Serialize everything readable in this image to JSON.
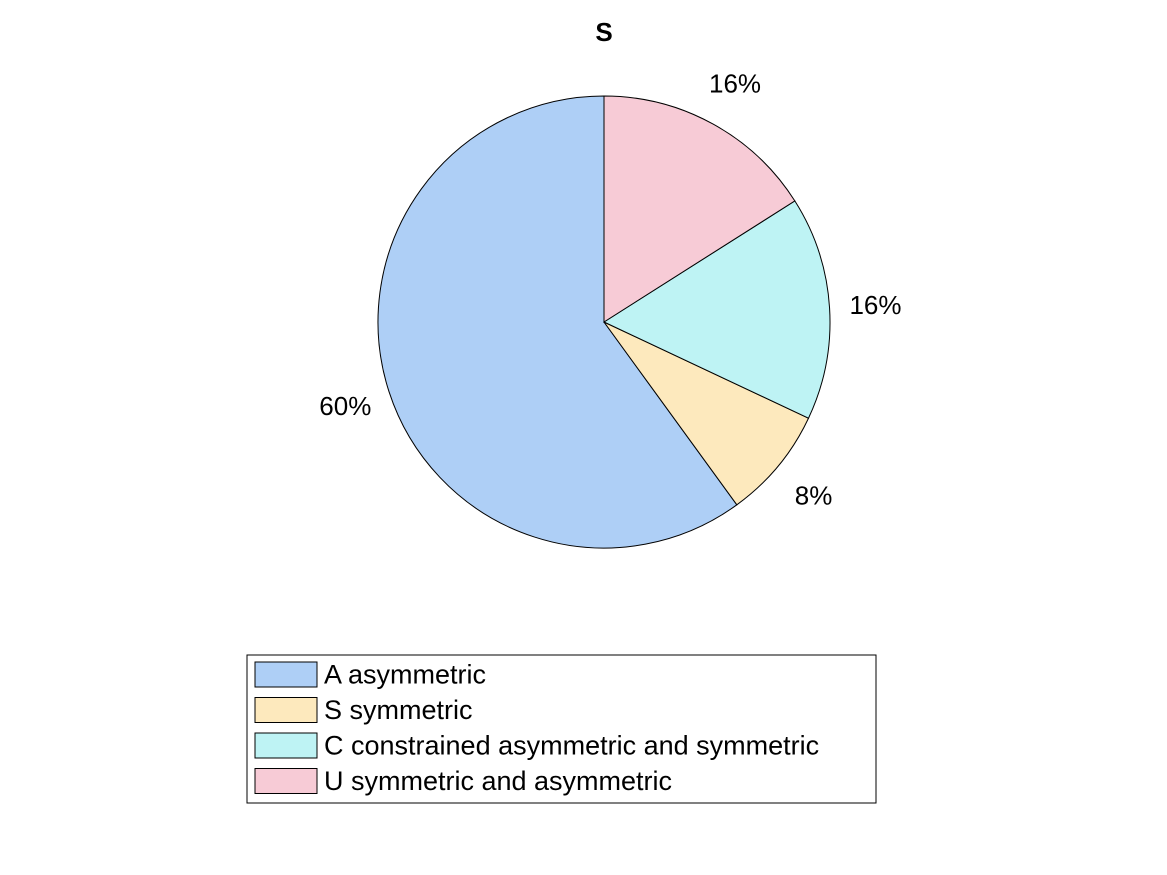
{
  "chart_data": {
    "type": "pie",
    "title": "S",
    "categories": [
      "A asymmetric",
      "S symmetric",
      "C constrained asymmetric and symmetric",
      "U symmetric and asymmetric"
    ],
    "values": [
      60,
      8,
      16,
      16
    ],
    "labels": [
      "60%",
      "8%",
      "16%",
      "16%"
    ],
    "colors": [
      "#aecff6",
      "#fde9bd",
      "#bef3f4",
      "#f7cbd6"
    ],
    "start_angle_deg": 90,
    "direction": "counterclockwise",
    "legend_placement": "bottom"
  }
}
